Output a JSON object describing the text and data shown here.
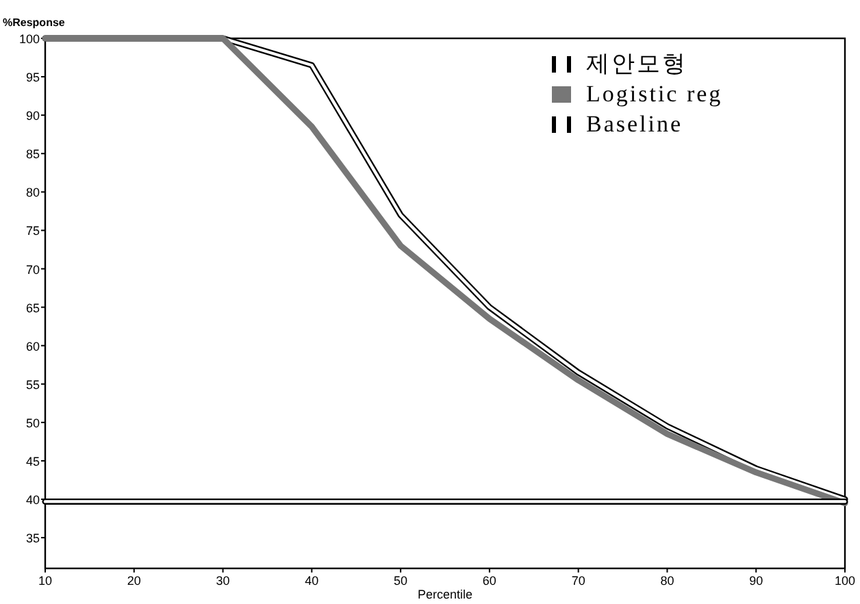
{
  "chart_data": {
    "type": "line",
    "ylabel": "%Response",
    "xlabel": "Percentile",
    "x": [
      10,
      20,
      30,
      40,
      50,
      60,
      70,
      80,
      90,
      100
    ],
    "xlim": [
      10,
      100
    ],
    "xticks": [
      10,
      20,
      30,
      40,
      50,
      60,
      70,
      80,
      90,
      100
    ],
    "ylim": [
      31,
      100
    ],
    "yticks": [
      35,
      40,
      45,
      50,
      55,
      60,
      65,
      70,
      75,
      80,
      85,
      90,
      95,
      100
    ],
    "grid": false,
    "legend": "top right",
    "marker": "none",
    "line_style": "solid",
    "series": [
      {
        "name": "제안모형",
        "color": "#000000",
        "values": [
          100,
          100,
          100,
          96.5,
          77,
          65,
          56.5,
          49.5,
          44,
          40
        ]
      },
      {
        "name": "Logistic reg",
        "color": "#777777",
        "values": [
          100,
          100,
          100,
          88.5,
          73,
          63.5,
          55.5,
          48.5,
          43.5,
          39.5
        ]
      },
      {
        "name": "Baseline",
        "color": "#000000",
        "values": [
          39.7,
          39.7,
          39.7,
          39.7,
          39.7,
          39.7,
          39.7,
          39.7,
          39.7,
          39.7
        ]
      }
    ]
  }
}
